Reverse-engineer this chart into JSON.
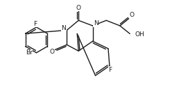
{
  "bg_color": "#ffffff",
  "line_color": "#1a1a1a",
  "lw": 1.0,
  "fs": 6.5,
  "figsize": [
    2.58,
    1.48
  ],
  "dpi": 100,
  "xlim": [
    0,
    10
  ],
  "ylim": [
    0,
    5.8
  ]
}
